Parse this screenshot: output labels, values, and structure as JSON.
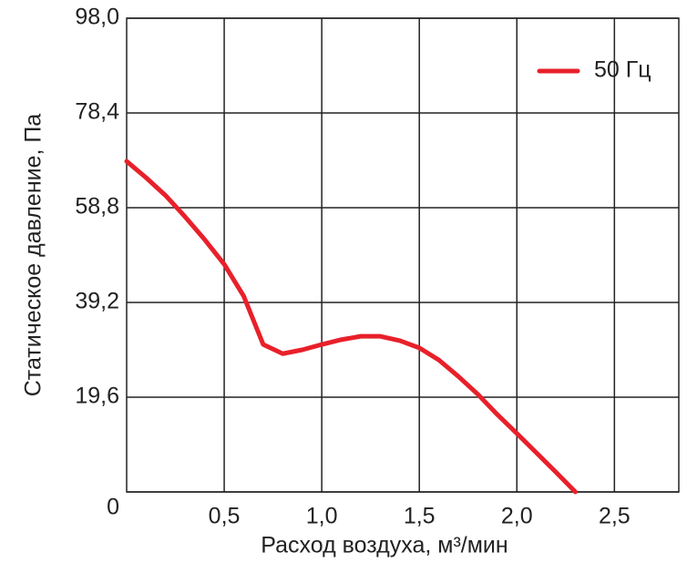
{
  "chart_data": {
    "type": "line",
    "x_label": "Расход воздуха, м³/мин",
    "y_label": "Статическое давление, Па",
    "xlim": [
      0,
      2.83
    ],
    "ylim": [
      0,
      98
    ],
    "xticks": [
      {
        "value": 0.5,
        "label": "0,5"
      },
      {
        "value": 1.0,
        "label": "1,0"
      },
      {
        "value": 1.5,
        "label": "1,5"
      },
      {
        "value": 2.0,
        "label": "2,0"
      },
      {
        "value": 2.5,
        "label": "2,5"
      }
    ],
    "yticks": [
      0,
      {
        "value": 19.6,
        "label": "19,6"
      },
      {
        "value": 39.2,
        "label": "39,2"
      },
      {
        "value": 58.8,
        "label": "58,8"
      },
      {
        "value": 78.4,
        "label": "78,4"
      },
      {
        "value": 98.0,
        "label": "98,0"
      }
    ],
    "grid": true,
    "legend": "upper right",
    "x": [
      0,
      0.1,
      0.2,
      0.3,
      0.4,
      0.5,
      0.6,
      0.7,
      0.8,
      0.9,
      1.0,
      1.1,
      1.2,
      1.3,
      1.4,
      1.5,
      1.6,
      1.7,
      1.8,
      1.9,
      2.0,
      2.1,
      2.2,
      2.3
    ],
    "series": [
      {
        "name": "50 Гц",
        "color": "#e8202a",
        "values": [
          68.4,
          65.0,
          61.3,
          56.9,
          52.2,
          47.1,
          40.5,
          30.5,
          28.6,
          29.4,
          30.5,
          31.5,
          32.2,
          32.2,
          31.3,
          29.8,
          27.3,
          23.9,
          20.2,
          16.0,
          12.1,
          8.1,
          4.1,
          0
        ]
      }
    ]
  }
}
